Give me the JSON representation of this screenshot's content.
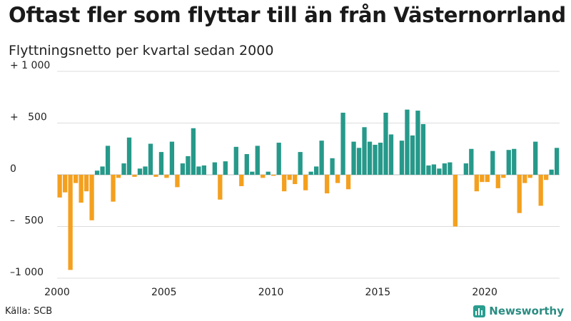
{
  "title": "Oftast fler som flyttar till än från Västernorrland",
  "subtitle": "Flyttningsnetto per kvartal sedan 2000",
  "source": "Källa: SCB",
  "brand": {
    "name": "Newsworthy",
    "icon": "bar-chart-icon"
  },
  "colors": {
    "positive": "#26998a",
    "negative": "#f4a01e",
    "grid": "#dcdcdc"
  },
  "chart_data": {
    "type": "bar",
    "title": "Oftast fler som flyttar till än från Västernorrland",
    "subtitle": "Flyttningsnetto per kvartal sedan 2000",
    "xlabel": "",
    "ylabel": "",
    "ylim": [
      -1000,
      1000
    ],
    "grid": true,
    "legend": "none",
    "y_ticks": [
      {
        "value": 1000,
        "label": "+ 1 000"
      },
      {
        "value": 500,
        "label": "+   500"
      },
      {
        "value": 0,
        "label": "0"
      },
      {
        "value": -500,
        "label": "–   500"
      },
      {
        "value": -1000,
        "label": "–1 000"
      }
    ],
    "x_ticks": [
      "2000",
      "2005",
      "2010",
      "2015",
      "2020"
    ],
    "start_year": 2000,
    "periods_per_year": 4,
    "series": [
      {
        "values": [
          -220,
          -170,
          -920,
          -80,
          -270,
          -160,
          -440,
          40,
          80,
          280,
          -260,
          -30,
          110,
          360,
          -20,
          60,
          80,
          300,
          -20,
          220,
          -30,
          320,
          -120,
          110,
          180,
          450,
          80,
          90,
          0,
          120,
          -240,
          130,
          0,
          270,
          -110,
          200,
          30,
          280,
          -30,
          30,
          -10,
          310,
          -160,
          -50,
          -90,
          220,
          -150,
          30,
          80,
          330,
          -180,
          160,
          -80,
          600,
          -140,
          320,
          260,
          460,
          320,
          290,
          310,
          600,
          390,
          0,
          330,
          630,
          380,
          620,
          490,
          90,
          100,
          60,
          110,
          120,
          -500,
          0,
          110,
          250,
          -160,
          -70,
          -70,
          230,
          -130,
          -30,
          240,
          250,
          -370,
          -80,
          -30,
          320,
          -300,
          -50,
          50,
          260
        ]
      }
    ]
  }
}
